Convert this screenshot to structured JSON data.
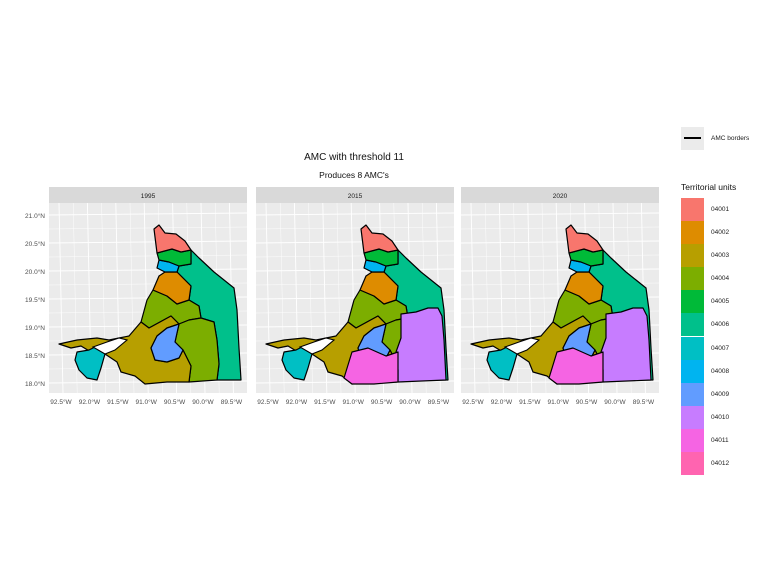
{
  "title": "AMC with threshold 11",
  "subtitle": "Produces 8 AMC's",
  "panels": [
    "1995",
    "2015",
    "2020"
  ],
  "x_ticks": [
    "92.5°W",
    "92.0°W",
    "91.5°W",
    "91.0°W",
    "90.5°W",
    "90.0°W",
    "89.5°W"
  ],
  "y_ticks": [
    "21.0°N",
    "20.5°N",
    "20.0°N",
    "19.5°N",
    "19.0°N",
    "18.5°N",
    "18.0°N"
  ],
  "legend_amc": {
    "label": "AMC borders"
  },
  "legend_units": {
    "title": "Territorial units",
    "items": [
      {
        "label": "04001",
        "color": "#F8766D"
      },
      {
        "label": "04002",
        "color": "#DE8C00"
      },
      {
        "label": "04003",
        "color": "#B79F00"
      },
      {
        "label": "04004",
        "color": "#7CAE00"
      },
      {
        "label": "04005",
        "color": "#00BA38"
      },
      {
        "label": "04006",
        "color": "#00C08B"
      },
      {
        "label": "04007",
        "color": "#00BFC4"
      },
      {
        "label": "04008",
        "color": "#00B4F0"
      },
      {
        "label": "04009",
        "color": "#619CFF"
      },
      {
        "label": "04010",
        "color": "#C77CFF"
      },
      {
        "label": "04011",
        "color": "#F564E3"
      },
      {
        "label": "04012",
        "color": "#FF64B0"
      }
    ]
  },
  "map_regions": [
    {
      "unit": "04001",
      "panel": "1995",
      "color": "#F8766D"
    },
    {
      "unit": "04002",
      "panel": "1995",
      "color": "#DE8C00"
    },
    {
      "unit": "04003",
      "panel": "1995",
      "color": "#B79F00"
    },
    {
      "unit": "04004",
      "panel": "1995",
      "color": "#7CAE00"
    },
    {
      "unit": "04005",
      "panel": "1995",
      "color": "#00BA38"
    },
    {
      "unit": "04006",
      "panel": "1995",
      "color": "#00C08B"
    },
    {
      "unit": "04007",
      "panel": "1995",
      "color": "#00BFC4"
    },
    {
      "unit": "04008",
      "panel": "1995",
      "color": "#00B4F0"
    },
    {
      "unit": "04009",
      "panel": "1995",
      "color": "#619CFF"
    },
    {
      "unit": "04001",
      "panel": "2015",
      "color": "#F8766D"
    },
    {
      "unit": "04002",
      "panel": "2015",
      "color": "#DE8C00"
    },
    {
      "unit": "04003",
      "panel": "2015",
      "color": "#B79F00"
    },
    {
      "unit": "04004",
      "panel": "2015",
      "color": "#7CAE00"
    },
    {
      "unit": "04005",
      "panel": "2015",
      "color": "#00BA38"
    },
    {
      "unit": "04006",
      "panel": "2015",
      "color": "#00C08B"
    },
    {
      "unit": "04007",
      "panel": "2015",
      "color": "#00BFC4"
    },
    {
      "unit": "04008",
      "panel": "2015",
      "color": "#00B4F0"
    },
    {
      "unit": "04009",
      "panel": "2015",
      "color": "#619CFF"
    },
    {
      "unit": "04010",
      "panel": "2015",
      "color": "#C77CFF"
    },
    {
      "unit": "04011",
      "panel": "2015",
      "color": "#F564E3"
    },
    {
      "unit": "04001",
      "panel": "2020",
      "color": "#F8766D"
    },
    {
      "unit": "04002",
      "panel": "2020",
      "color": "#DE8C00"
    },
    {
      "unit": "04003",
      "panel": "2020",
      "color": "#B79F00"
    },
    {
      "unit": "04004",
      "panel": "2020",
      "color": "#7CAE00"
    },
    {
      "unit": "04005",
      "panel": "2020",
      "color": "#00BA38"
    },
    {
      "unit": "04006",
      "panel": "2020",
      "color": "#00C08B"
    },
    {
      "unit": "04007",
      "panel": "2020",
      "color": "#00BFC4"
    },
    {
      "unit": "04008",
      "panel": "2020",
      "color": "#00B4F0"
    },
    {
      "unit": "04009",
      "panel": "2020",
      "color": "#619CFF"
    },
    {
      "unit": "04010",
      "panel": "2020",
      "color": "#C77CFF"
    },
    {
      "unit": "04011",
      "panel": "2020",
      "color": "#F564E3"
    }
  ]
}
